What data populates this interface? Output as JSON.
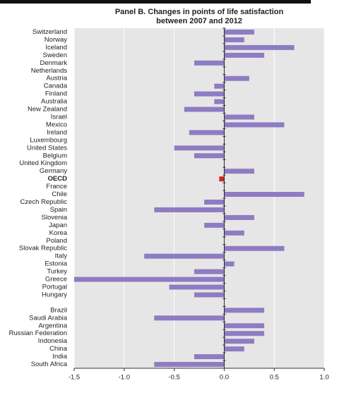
{
  "chart_data": {
    "type": "hbar",
    "title_lines": [
      "Panel B. Changes in points of life satisfaction",
      "between 2007 and 2012"
    ],
    "categories": [
      "Switzerland",
      "Norway",
      "Iceland",
      "Sweden",
      "Denmark",
      "Netherlands",
      "Austria",
      "Canada",
      "Finland",
      "Australia",
      "New Zealand",
      "Israel",
      "Mexico",
      "Ireland",
      "Luxembourg",
      "United States",
      "Belgium",
      "United Kingdom",
      "Germany",
      "OECD",
      "France",
      "Chile",
      "Czech Republic",
      "Spain",
      "Slovenia",
      "Japan",
      "Korea",
      "Poland",
      "Slovak Republic",
      "Italy",
      "Estonia",
      "Turkey",
      "Greece",
      "Portugal",
      "Hungary",
      null,
      "Brazil",
      "Saudi Arabia",
      "Argentina",
      "Russian Federation",
      "Indonesia",
      "China",
      "India",
      "South Africa"
    ],
    "values": [
      0.3,
      0.2,
      0.7,
      0.4,
      -0.3,
      0,
      0.25,
      -0.1,
      -0.3,
      -0.1,
      -0.4,
      0.3,
      0.6,
      -0.35,
      0,
      -0.5,
      -0.3,
      0,
      0.3,
      -0.05,
      0,
      0.8,
      -0.2,
      -0.7,
      0.3,
      -0.2,
      0.2,
      0,
      0.6,
      -0.8,
      0.1,
      -0.3,
      -1.5,
      -0.55,
      -0.3,
      null,
      0.4,
      -0.7,
      0.4,
      0.4,
      0.3,
      0.2,
      -0.3,
      -0.7
    ],
    "color": "#8e7cc3",
    "highlight_color": "#d0242b",
    "highlight_index": 19,
    "xlim": [
      -1.5,
      1.0
    ],
    "xticks": [
      -1.5,
      {
        "value": -1.0,
        "label": "-1.0"
      },
      -0.5,
      {
        "value": 0.0,
        "label": "0.0"
      },
      0.5,
      {
        "value": 1.0,
        "label": "1.0"
      }
    ],
    "grid": true
  }
}
